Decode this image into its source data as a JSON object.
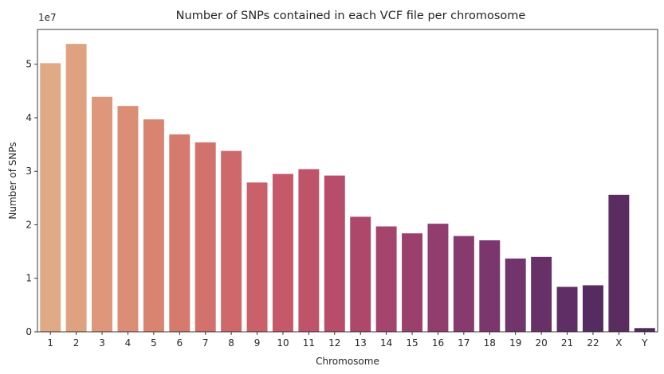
{
  "chart_data": {
    "type": "bar",
    "title": "Number of SNPs contained in each VCF file per chromosome",
    "xlabel": "Chromosome",
    "ylabel": "Number of SNPs",
    "y_offset_label": "1e7",
    "y_scale": 10000000,
    "ylim": [
      0,
      56500000
    ],
    "yticks": [
      0,
      10000000,
      20000000,
      30000000,
      40000000,
      50000000
    ],
    "ytick_labels": [
      "0",
      "1",
      "2",
      "3",
      "4",
      "5"
    ],
    "grid": false,
    "categories": [
      "1",
      "2",
      "3",
      "4",
      "5",
      "6",
      "7",
      "8",
      "9",
      "10",
      "11",
      "12",
      "13",
      "14",
      "15",
      "16",
      "17",
      "18",
      "19",
      "20",
      "21",
      "22",
      "X",
      "Y"
    ],
    "values": [
      50200000,
      53800000,
      43900000,
      42200000,
      39700000,
      36900000,
      35400000,
      33800000,
      27900000,
      29500000,
      30400000,
      29200000,
      21500000,
      19700000,
      18400000,
      20200000,
      17900000,
      17100000,
      13700000,
      14000000,
      8400000,
      8700000,
      25600000,
      700000
    ],
    "colors": [
      "#e0aa86",
      "#dfa281",
      "#de977b",
      "#dc8d76",
      "#d98371",
      "#d67a6e",
      "#d3716c",
      "#cf686b",
      "#ca606a",
      "#c5596a",
      "#bf536a",
      "#b74d6a",
      "#ae486b",
      "#a5446c",
      "#9b406d",
      "#913d6e",
      "#863a6e",
      "#7b376d",
      "#71346b",
      "#673168",
      "#5e2e64",
      "#552c60",
      "#5b2c60",
      "#512a5a"
    ]
  }
}
